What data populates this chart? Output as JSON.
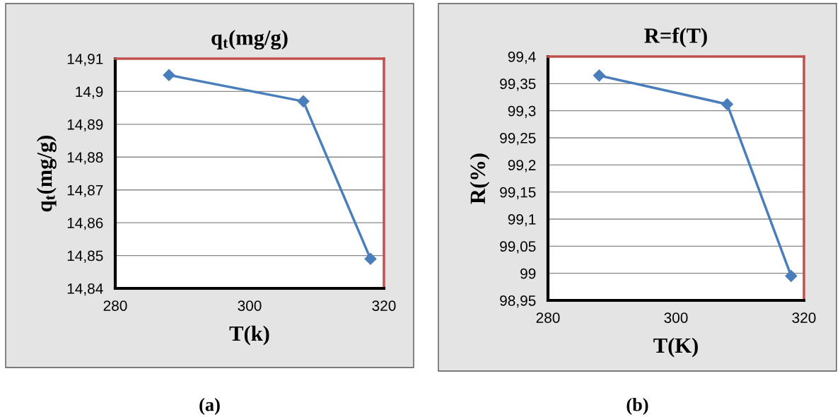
{
  "chart_data": [
    {
      "type": "line",
      "title": "q$_{t}$(mg/g)",
      "xlabel": "T(k)",
      "ylabel": "q$_{t}$(mg/g)",
      "x": [
        288,
        308,
        318
      ],
      "series": [
        {
          "color": "#4a7ebb",
          "values": [
            14.905,
            14.897,
            14.849
          ]
        }
      ],
      "xlim": [
        280,
        320
      ],
      "xticks": [
        280,
        300,
        320
      ],
      "ylim": [
        14.84,
        14.91
      ],
      "yticks": [
        {
          "value": 14.84,
          "label": "14,84"
        },
        {
          "value": 14.85,
          "label": "14,85"
        },
        {
          "value": 14.86,
          "label": "14,86"
        },
        {
          "value": 14.87,
          "label": "14,87"
        },
        {
          "value": 14.88,
          "label": "14,88"
        },
        {
          "value": 14.89,
          "label": "14,89"
        },
        {
          "value": 14.9,
          "label": "14,9"
        },
        {
          "value": 14.91,
          "label": "14,91"
        }
      ],
      "grid": "y",
      "marker": "diamond",
      "line_style": "solid",
      "annotations": [
        "(a)"
      ]
    },
    {
      "type": "line",
      "title": "R=f(T)",
      "xlabel": "T(K)",
      "ylabel": "R(%)",
      "x": [
        288,
        308,
        318
      ],
      "series": [
        {
          "color": "#4a7ebb",
          "values": [
            99.365,
            99.312,
            98.995
          ]
        }
      ],
      "xlim": [
        280,
        320
      ],
      "xticks": [
        280,
        300,
        320
      ],
      "ylim": [
        98.95,
        99.4
      ],
      "yticks": [
        {
          "value": 98.95,
          "label": "98,95"
        },
        {
          "value": 99.0,
          "label": "99"
        },
        {
          "value": 99.05,
          "label": "99,05"
        },
        {
          "value": 99.1,
          "label": "99,1"
        },
        {
          "value": 99.15,
          "label": "99,15"
        },
        {
          "value": 99.2,
          "label": "99,2"
        },
        {
          "value": 99.25,
          "label": "99,25"
        },
        {
          "value": 99.3,
          "label": "99,3"
        },
        {
          "value": 99.35,
          "label": "99,35"
        },
        {
          "value": 99.4,
          "label": "99,4"
        }
      ],
      "grid": "y",
      "marker": "diamond",
      "line_style": "solid",
      "annotations": [
        "(b)"
      ]
    }
  ]
}
